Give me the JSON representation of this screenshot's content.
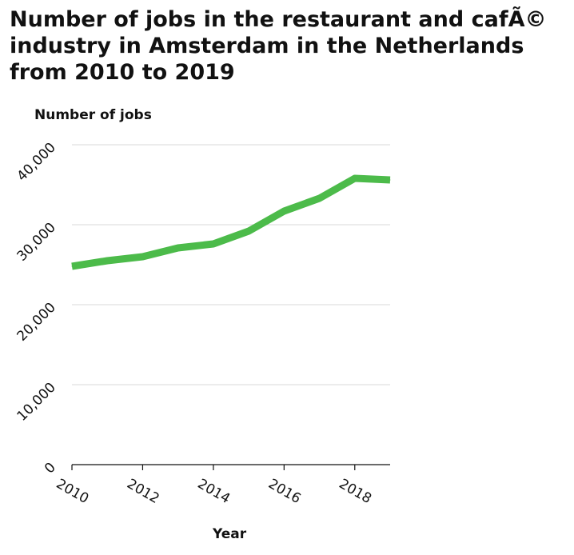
{
  "chart_data": {
    "type": "line",
    "title": "Number of jobs in the restaurant and cafÃ© industry in Amsterdam in the Netherlands from 2010 to 2019",
    "xlabel": "Year",
    "ylabel": "Number of jobs",
    "xlim": [
      2010,
      2019
    ],
    "ylim": [
      0,
      40000
    ],
    "x_ticks": [
      2010,
      2012,
      2014,
      2016,
      2018
    ],
    "x_tick_labels": [
      "2010",
      "2012",
      "2014",
      "2016",
      "2018"
    ],
    "y_ticks": [
      0,
      10000,
      20000,
      30000,
      40000
    ],
    "y_tick_labels": [
      "0",
      "10,000",
      "20,000",
      "30,000",
      "40,000"
    ],
    "grid": "horizontal",
    "line_color": "#4cbb4a",
    "series": [
      {
        "x": [
          2010,
          2011,
          2012,
          2013,
          2014,
          2015,
          2016,
          2017,
          2018,
          2019
        ],
        "values": [
          24800,
          25500,
          26000,
          27100,
          27600,
          29200,
          31700,
          33300,
          35800,
          35600
        ]
      }
    ]
  }
}
